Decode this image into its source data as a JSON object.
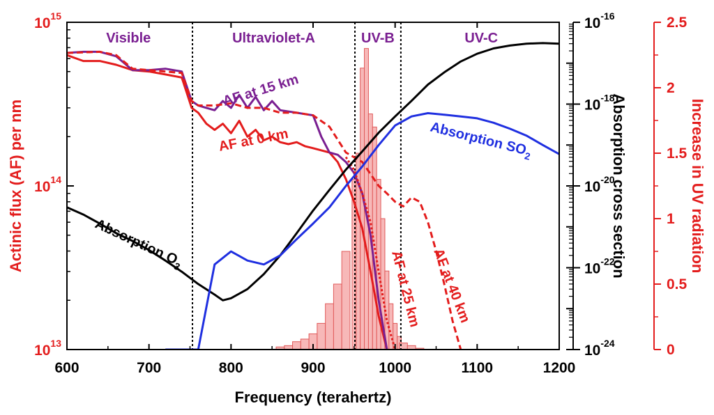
{
  "colors": {
    "red": "#e31c1c",
    "purple": "#7a1f91",
    "blue": "#1f2fe0",
    "black": "#000000",
    "pink_fill": "#f7b8b8",
    "pink_edge": "#e05a5a"
  },
  "chart_data": {
    "type": "line",
    "xlabel": "Frequency (terahertz)",
    "xlim": [
      600,
      1200
    ],
    "x_ticks": [
      "600",
      "700",
      "800",
      "900",
      "1000",
      "1100",
      "1200"
    ],
    "x_tick_values": [
      600,
      700,
      800,
      900,
      1000,
      1100,
      1200
    ],
    "left_axis": {
      "label": "Actinic flux (AF) per nm",
      "scale": "log",
      "range": [
        10000000000000.0,
        1000000000000000.0
      ],
      "ticks": [
        {
          "base": "10",
          "exp": "15",
          "value": 1000000000000000.0
        },
        {
          "base": "10",
          "exp": "14",
          "value": 100000000000000.0
        },
        {
          "base": "10",
          "exp": "13",
          "value": 10000000000000.0
        }
      ]
    },
    "middle_axis": {
      "label": "Absorption cross section",
      "scale": "log",
      "range": [
        1e-24,
        1e-16
      ],
      "ticks": [
        {
          "base": "10",
          "exp": "-16",
          "value": 1e-16
        },
        {
          "base": "10",
          "exp": "-18",
          "value": 1e-18
        },
        {
          "base": "10",
          "exp": "-20",
          "value": 1e-20
        },
        {
          "base": "10",
          "exp": "-22",
          "value": 1e-22
        },
        {
          "base": "10",
          "exp": "-24",
          "value": 1e-24
        }
      ]
    },
    "right_axis": {
      "label": "Increase in UV radiation",
      "range": [
        0,
        2.5
      ],
      "ticks": [
        "0",
        "0.5",
        "1",
        "1.5",
        "2",
        "2.5"
      ],
      "tick_values": [
        0,
        0.5,
        1,
        1.5,
        2,
        2.5
      ]
    },
    "regions": [
      {
        "label": "Visible",
        "x": 675
      },
      {
        "label": "Ultraviolet-A",
        "x": 852
      },
      {
        "label": "UV-B",
        "x": 979
      },
      {
        "label": "UV-C",
        "x": 1105
      }
    ],
    "boundaries": [
      753,
      951,
      1007
    ],
    "series": [
      {
        "key": "af0",
        "axis": "left",
        "style": "solid",
        "color": "red",
        "x": [
          600,
          620,
          640,
          660,
          680,
          700,
          720,
          740,
          752,
          760,
          770,
          780,
          790,
          800,
          810,
          820,
          830,
          840,
          850,
          860,
          870,
          880,
          890,
          900,
          910,
          920,
          930,
          940,
          950,
          960,
          970,
          980,
          990
        ],
        "y": [
          630000000000000.0,
          580000000000000.0,
          580000000000000.0,
          550000000000000.0,
          510000000000000.0,
          500000000000000.0,
          480000000000000.0,
          460000000000000.0,
          300000000000000.0,
          280000000000000.0,
          240000000000000.0,
          220000000000000.0,
          240000000000000.0,
          210000000000000.0,
          250000000000000.0,
          200000000000000.0,
          220000000000000.0,
          190000000000000.0,
          200000000000000.0,
          185000000000000.0,
          180000000000000.0,
          185000000000000.0,
          175000000000000.0,
          170000000000000.0,
          165000000000000.0,
          160000000000000.0,
          140000000000000.0,
          110000000000000.0,
          80000000000000.0,
          55000000000000.0,
          30000000000000.0,
          16000000000000.0,
          10000000000000.0
        ]
      },
      {
        "key": "af15",
        "axis": "left",
        "style": "solid",
        "color": "purple",
        "x": [
          600,
          620,
          640,
          660,
          680,
          700,
          720,
          740,
          752,
          760,
          770,
          780,
          790,
          800,
          810,
          820,
          830,
          840,
          850,
          860,
          870,
          880,
          890,
          900,
          910,
          920,
          930,
          940,
          950,
          960,
          970,
          980,
          990
        ],
        "y": [
          650000000000000.0,
          660000000000000.0,
          660000000000000.0,
          620000000000000.0,
          510000000000000.0,
          510000000000000.0,
          520000000000000.0,
          500000000000000.0,
          330000000000000.0,
          310000000000000.0,
          300000000000000.0,
          290000000000000.0,
          330000000000000.0,
          300000000000000.0,
          360000000000000.0,
          300000000000000.0,
          350000000000000.0,
          290000000000000.0,
          330000000000000.0,
          290000000000000.0,
          285000000000000.0,
          280000000000000.0,
          275000000000000.0,
          270000000000000.0,
          200000000000000.0,
          160000000000000.0,
          155000000000000.0,
          140000000000000.0,
          120000000000000.0,
          90000000000000.0,
          50000000000000.0,
          20000000000000.0,
          10000000000000.0
        ]
      },
      {
        "key": "af25",
        "axis": "left",
        "style": "dot",
        "color": "red",
        "x": [
          940,
          950,
          960,
          970,
          980,
          990,
          1000
        ],
        "y": [
          150000000000000.0,
          125000000000000.0,
          90000000000000.0,
          60000000000000.0,
          30000000000000.0,
          15000000000000.0,
          10000000000000.0
        ]
      },
      {
        "key": "af40",
        "axis": "left",
        "style": "dash",
        "color": "red",
        "x": [
          600,
          640,
          660,
          680,
          700,
          720,
          740,
          752,
          760,
          780,
          800,
          820,
          840,
          860,
          880,
          900,
          920,
          940,
          960,
          980,
          990,
          1000,
          1010,
          1020,
          1030,
          1040,
          1050,
          1060,
          1070,
          1080
        ],
        "y": [
          650000000000000.0,
          660000000000000.0,
          630000000000000.0,
          520000000000000.0,
          510000000000000.0,
          500000000000000.0,
          490000000000000.0,
          330000000000000.0,
          310000000000000.0,
          310000000000000.0,
          320000000000000.0,
          300000000000000.0,
          300000000000000.0,
          280000000000000.0,
          280000000000000.0,
          270000000000000.0,
          230000000000000.0,
          160000000000000.0,
          140000000000000.0,
          100000000000000.0,
          90000000000000.0,
          80000000000000.0,
          75000000000000.0,
          85000000000000.0,
          80000000000000.0,
          60000000000000.0,
          40000000000000.0,
          25000000000000.0,
          15000000000000.0,
          10000000000000.0
        ]
      },
      {
        "key": "o3",
        "axis": "middle",
        "style": "solid",
        "color": "black",
        "x": [
          600,
          620,
          640,
          660,
          680,
          700,
          720,
          740,
          760,
          780,
          790,
          800,
          820,
          840,
          860,
          880,
          900,
          920,
          940,
          960,
          980,
          1000,
          1020,
          1040,
          1060,
          1080,
          1100,
          1120,
          1140,
          1160,
          1180,
          1200
        ],
        "y": [
          3e-21,
          2e-21,
          1.2e-21,
          7e-22,
          4.5e-22,
          2.7e-22,
          1.5e-22,
          8e-23,
          4e-23,
          2.2e-23,
          1.6e-23,
          1.8e-23,
          3e-23,
          7e-23,
          2e-22,
          7e-22,
          2.5e-21,
          8e-21,
          2.5e-20,
          7e-20,
          2e-19,
          5e-19,
          1.2e-18,
          3e-18,
          6e-18,
          1.1e-17,
          1.7e-17,
          2.3e-17,
          2.7e-17,
          3e-17,
          3.1e-17,
          3e-17
        ]
      },
      {
        "key": "so2",
        "axis": "middle",
        "style": "solid",
        "color": "blue",
        "x": [
          720,
          740,
          760,
          780,
          800,
          820,
          840,
          860,
          880,
          900,
          920,
          940,
          960,
          980,
          1000,
          1020,
          1040,
          1060,
          1080,
          1100,
          1120,
          1140,
          1160,
          1180,
          1200
        ],
        "y": [
          1e-24,
          1e-24,
          1e-24,
          1.2e-22,
          2.5e-22,
          1.5e-22,
          1.2e-22,
          2e-22,
          5e-22,
          1.2e-21,
          3e-21,
          1e-20,
          3e-20,
          1e-19,
          3e-19,
          5e-19,
          6e-19,
          5.5e-19,
          5e-19,
          4.5e-19,
          3.5e-19,
          2.5e-19,
          1.7e-19,
          1e-19,
          6e-20
        ]
      },
      {
        "key": "uv_increase",
        "axis": "right",
        "style": "bars",
        "color": "pink_fill",
        "x": [
          860,
          870,
          880,
          890,
          900,
          910,
          920,
          930,
          940,
          950,
          955,
          960,
          965,
          970,
          975,
          980,
          985,
          990,
          995,
          1000,
          1005,
          1010,
          1020,
          1030
        ],
        "y": [
          0.02,
          0.03,
          0.06,
          0.08,
          0.12,
          0.2,
          0.35,
          0.5,
          0.75,
          1.3,
          1.5,
          2.15,
          2.3,
          1.8,
          1.7,
          1.3,
          1.0,
          0.6,
          0.35,
          0.2,
          0.1,
          0.05,
          0.03,
          0.01
        ]
      }
    ],
    "annotations": [
      {
        "text": "AF at 15 km",
        "x": 322,
        "y": 152,
        "rot": -17,
        "color": "purple"
      },
      {
        "text": "AF at 0  km",
        "x": 315,
        "y": 217,
        "rot": -11,
        "color": "red"
      },
      {
        "text": "Absorption  SO",
        "sub": "2",
        "x": 616,
        "y": 188,
        "rot": 14,
        "color": "blue"
      },
      {
        "text": "Absorption O",
        "sub": "3",
        "x": 135,
        "y": 326,
        "rot": 25,
        "color": "black"
      },
      {
        "text": "AF at 25 km",
        "x": 562,
        "y": 362,
        "rot": 76,
        "color": "red"
      },
      {
        "text": "AF at 40 km",
        "x": 622,
        "y": 360,
        "rot": 69,
        "color": "red"
      }
    ]
  }
}
